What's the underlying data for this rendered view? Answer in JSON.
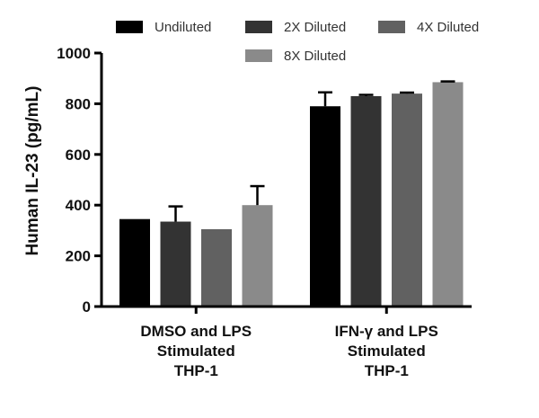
{
  "chart_data": {
    "type": "bar",
    "ylabel": "Human IL-23 (pg/mL)",
    "ylim": [
      0,
      1000
    ],
    "yticks": [
      "0",
      "200",
      "400",
      "600",
      "800",
      "1000"
    ],
    "categories": [
      [
        "DMSO and LPS",
        "Stimulated",
        "THP-1"
      ],
      [
        "IFN-γ and LPS",
        "Stimulated",
        "THP-1"
      ]
    ],
    "series": [
      {
        "name": "Undiluted",
        "color": "#000000",
        "values": [
          345,
          790
        ],
        "errors": [
          0,
          55
        ]
      },
      {
        "name": "2X Diluted",
        "color": "#333333",
        "values": [
          335,
          830
        ],
        "errors": [
          60,
          5
        ]
      },
      {
        "name": "4X Diluted",
        "color": "#616161",
        "values": [
          305,
          840
        ],
        "errors": [
          0,
          4
        ]
      },
      {
        "name": "8X Diluted",
        "color": "#8a8a8a",
        "values": [
          400,
          885
        ],
        "errors": [
          75,
          3
        ]
      }
    ],
    "legend_position": "top"
  }
}
